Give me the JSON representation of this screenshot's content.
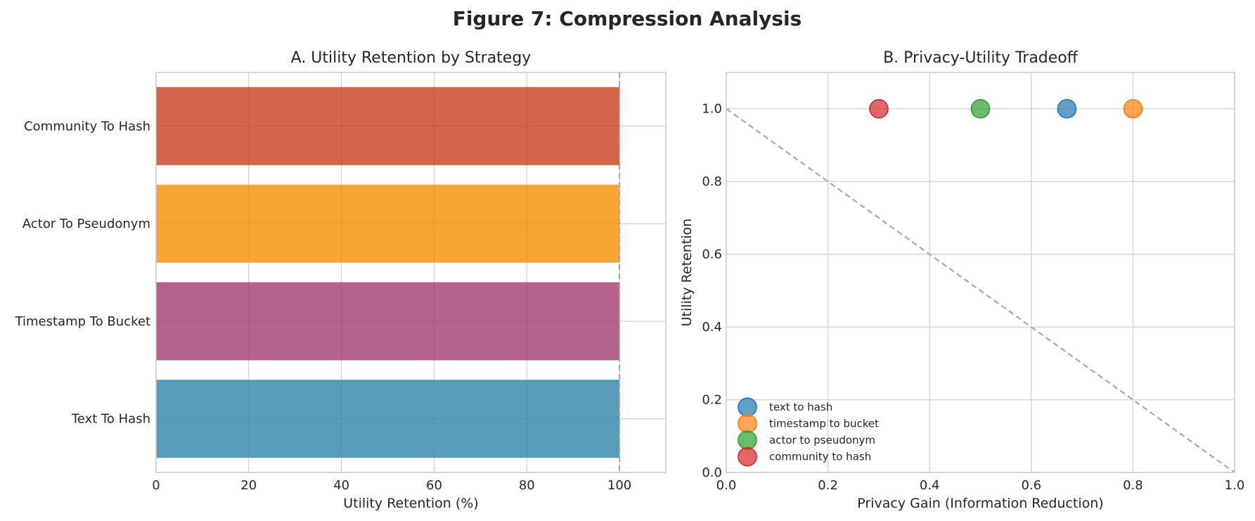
{
  "figure": {
    "title": "Figure 7: Compression Analysis"
  },
  "chart_data": [
    {
      "type": "bar",
      "orientation": "horizontal",
      "title": "A. Utility Retention by Strategy",
      "xlabel": "Utility Retention (%)",
      "ylabel": "",
      "categories": [
        "Text To Hash",
        "Timestamp To Bucket",
        "Actor To Pseudonym",
        "Community To Hash"
      ],
      "values": [
        100,
        100,
        100,
        100
      ],
      "colors": [
        "#2e86ab",
        "#a23b72",
        "#f18f01",
        "#c73e1d"
      ],
      "xlim": [
        0,
        110
      ],
      "xticks": [
        0,
        20,
        40,
        60,
        80,
        100
      ],
      "xtick_labels": [
        "0",
        "20",
        "40",
        "60",
        "80",
        "100"
      ],
      "reference_line": {
        "x": 100,
        "style": "dashed",
        "color": "#a9a9a9"
      },
      "grid": true
    },
    {
      "type": "scatter",
      "title": "B. Privacy-Utility Tradeoff",
      "xlabel": "Privacy Gain (Information Reduction)",
      "ylabel": "Utility Retention",
      "xlim": [
        0,
        1
      ],
      "ylim": [
        0,
        1.1
      ],
      "xticks": [
        0,
        0.2,
        0.4,
        0.6,
        0.8,
        1.0
      ],
      "xtick_labels": [
        "0.0",
        "0.2",
        "0.4",
        "0.6",
        "0.8",
        "1.0"
      ],
      "yticks": [
        0,
        0.2,
        0.4,
        0.6,
        0.8,
        1.0
      ],
      "ytick_labels": [
        "0.0",
        "0.2",
        "0.4",
        "0.6",
        "0.8",
        "1.0"
      ],
      "series": [
        {
          "name": "text to hash",
          "x": [
            0.67
          ],
          "y": [
            1.0
          ],
          "color": "#1f77b4"
        },
        {
          "name": "timestamp to bucket",
          "x": [
            0.8
          ],
          "y": [
            1.0
          ],
          "color": "#ff7f0e"
        },
        {
          "name": "actor to pseudonym",
          "x": [
            0.5
          ],
          "y": [
            1.0
          ],
          "color": "#2ca02c"
        },
        {
          "name": "community to hash",
          "x": [
            0.3
          ],
          "y": [
            1.0
          ],
          "color": "#d62728"
        }
      ],
      "reference_line": {
        "from": [
          0,
          1
        ],
        "to": [
          1,
          0
        ],
        "style": "dashed",
        "color": "#a9a9a9"
      },
      "legend_position": "lower-left",
      "grid": true
    }
  ]
}
